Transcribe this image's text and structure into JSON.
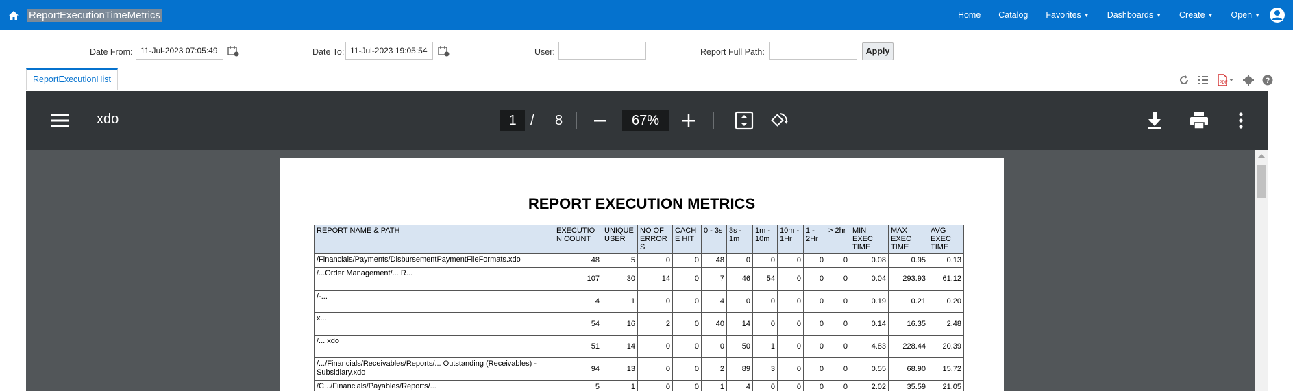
{
  "header": {
    "title": "ReportExecutionTimeMetrics",
    "nav": [
      {
        "label": "Home",
        "dropdown": false
      },
      {
        "label": "Catalog",
        "dropdown": false
      },
      {
        "label": "Favorites",
        "dropdown": true
      },
      {
        "label": "Dashboards",
        "dropdown": true
      },
      {
        "label": "Create",
        "dropdown": true
      },
      {
        "label": "Open",
        "dropdown": true
      }
    ]
  },
  "params": {
    "date_from_label": "Date From:",
    "date_from_value": "11-Jul-2023 07:05:49",
    "date_to_label": "Date To:",
    "date_to_value": "11-Jul-2023 19:05:54",
    "user_label": "User:",
    "user_value": "",
    "report_path_label": "Report Full Path:",
    "report_path_value": "",
    "apply_label": "Apply"
  },
  "tabs": [
    {
      "label": "ReportExecutionHist"
    }
  ],
  "viewer": {
    "doc_name": "xdo",
    "current_page": "1",
    "page_sep": "/",
    "total_pages": "8",
    "zoom": "67%"
  },
  "report": {
    "title": "REPORT EXECUTION METRICS",
    "columns": [
      "REPORT NAME & PATH",
      "EXECUTIO N COUNT",
      "UNIQUE USER",
      "NO OF ERROR S",
      "CACH E HIT",
      "0 - 3s",
      "3s - 1m",
      "1m - 10m",
      "10m - 1Hr",
      "1 - 2Hr",
      "> 2hr",
      "MIN EXEC TIME",
      "MAX EXEC TIME",
      "AVG EXEC TIME"
    ],
    "rows": [
      {
        "path": "/Financials/Payments/DisbursementPaymentFileFormats.xdo",
        "values": [
          "48",
          "5",
          "0",
          "0",
          "48",
          "0",
          "0",
          "0",
          "0",
          "0",
          "0.08",
          "0.95",
          "0.13"
        ]
      },
      {
        "path": "/...Order Management/... R...",
        "values": [
          "107",
          "30",
          "14",
          "0",
          "7",
          "46",
          "54",
          "0",
          "0",
          "0",
          "0.04",
          "293.93",
          "61.12"
        ]
      },
      {
        "path": "/-...",
        "values": [
          "4",
          "1",
          "0",
          "0",
          "4",
          "0",
          "0",
          "0",
          "0",
          "0",
          "0.19",
          "0.21",
          "0.20"
        ]
      },
      {
        "path": "x...",
        "values": [
          "54",
          "16",
          "2",
          "0",
          "40",
          "14",
          "0",
          "0",
          "0",
          "0",
          "0.14",
          "16.35",
          "2.48"
        ]
      },
      {
        "path": "/... xdo",
        "values": [
          "51",
          "14",
          "0",
          "0",
          "0",
          "50",
          "1",
          "0",
          "0",
          "0",
          "4.83",
          "228.44",
          "20.39"
        ]
      },
      {
        "path": "/.../Financials/Receivables/Reports/... Outstanding (Receivables) - Subsidiary.xdo",
        "values": [
          "94",
          "13",
          "0",
          "0",
          "2",
          "89",
          "3",
          "0",
          "0",
          "0",
          "0.55",
          "68.90",
          "15.72"
        ]
      },
      {
        "path": "/C.../Financials/Payables/Reports/...",
        "values": [
          "5",
          "1",
          "0",
          "0",
          "1",
          "4",
          "0",
          "0",
          "0",
          "0",
          "2.02",
          "35.59",
          "21.05"
        ]
      }
    ]
  },
  "colors": {
    "topbar": "#0572ce",
    "viewer_toolbar": "#323639",
    "viewer_bg": "#525659",
    "table_header": "#d8e4f2"
  }
}
